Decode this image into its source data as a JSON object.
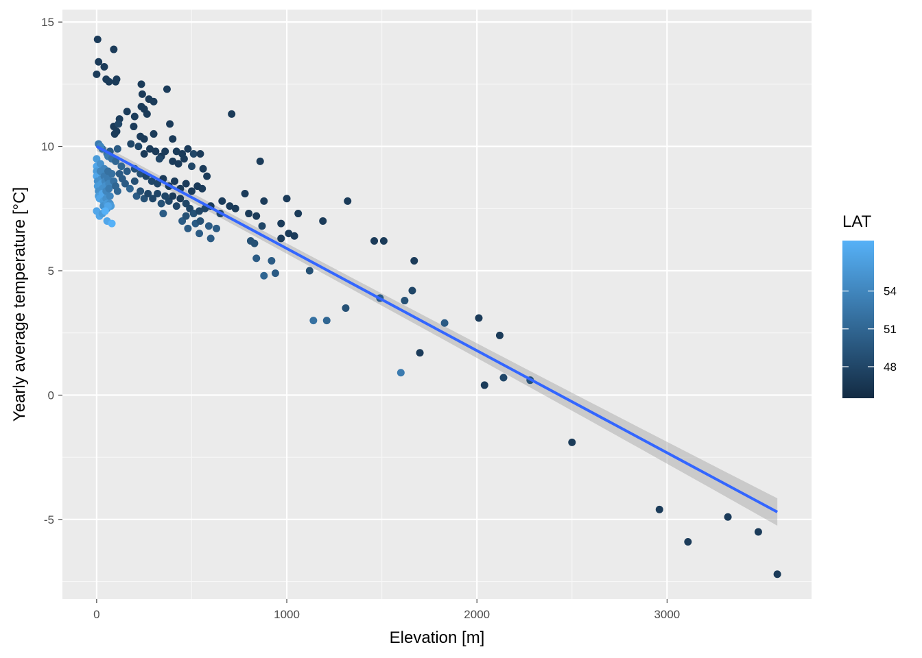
{
  "chart_data": {
    "type": "scatter",
    "title": "",
    "xlabel": "Elevation [m]",
    "ylabel": "Yearly average temperature [°C]",
    "xlim": [
      -180,
      3760
    ],
    "ylim": [
      -8.2,
      15.5
    ],
    "x_ticks": [
      0,
      1000,
      2000,
      3000
    ],
    "x_tick_labels": [
      "0",
      "1000",
      "2000",
      "3000"
    ],
    "y_ticks": [
      -5,
      0,
      5,
      10,
      15
    ],
    "y_tick_labels": [
      "-5",
      "0",
      "5",
      "10",
      "15"
    ],
    "grid": true,
    "background": "#ebebeb",
    "legend": {
      "title": "LAT",
      "placement": "right",
      "type": "colorbar",
      "range": [
        45.5,
        58
      ],
      "breaks": [
        48,
        51,
        54
      ],
      "labels": [
        "48",
        "51",
        "54"
      ],
      "low_color": "#132b43",
      "high_color": "#56b1f7"
    },
    "trend": {
      "method": "linear",
      "color": "#3366ff",
      "band_color": "#999999",
      "x": [
        0,
        3580
      ],
      "y": [
        10.0,
        -4.7
      ],
      "band_halfwidth": [
        0.18,
        0.55
      ]
    },
    "columns": [
      "elevation_m",
      "temperature_c",
      "lat"
    ],
    "points": [
      [
        5,
        14.3,
        47
      ],
      [
        10,
        13.4,
        47
      ],
      [
        40,
        13.2,
        47
      ],
      [
        0,
        12.9,
        47
      ],
      [
        90,
        13.9,
        47
      ],
      [
        50,
        12.7,
        47
      ],
      [
        65,
        12.6,
        47
      ],
      [
        100,
        12.6,
        47
      ],
      [
        105,
        12.7,
        47
      ],
      [
        235,
        12.5,
        47
      ],
      [
        240,
        12.1,
        47
      ],
      [
        275,
        11.9,
        47
      ],
      [
        300,
        11.8,
        47
      ],
      [
        370,
        12.3,
        47
      ],
      [
        710,
        11.3,
        47
      ],
      [
        160,
        11.4,
        47
      ],
      [
        200,
        11.2,
        47
      ],
      [
        235,
        11.6,
        47
      ],
      [
        250,
        11.5,
        47
      ],
      [
        265,
        11.3,
        47
      ],
      [
        120,
        11.1,
        47
      ],
      [
        195,
        10.8,
        47
      ],
      [
        385,
        10.9,
        47
      ],
      [
        105,
        10.6,
        47
      ],
      [
        95,
        10.5,
        47
      ],
      [
        90,
        10.8,
        47
      ],
      [
        115,
        10.9,
        48
      ],
      [
        230,
        10.4,
        47
      ],
      [
        250,
        10.3,
        47
      ],
      [
        300,
        10.5,
        47
      ],
      [
        400,
        10.3,
        47
      ],
      [
        30,
        9.9,
        52
      ],
      [
        55,
        9.7,
        52
      ],
      [
        70,
        9.8,
        50
      ],
      [
        110,
        9.9,
        50
      ],
      [
        180,
        10.1,
        48
      ],
      [
        220,
        10.0,
        48
      ],
      [
        250,
        9.7,
        47
      ],
      [
        280,
        9.9,
        47
      ],
      [
        310,
        9.8,
        47
      ],
      [
        340,
        9.6,
        47
      ],
      [
        360,
        9.8,
        47
      ],
      [
        420,
        9.8,
        47
      ],
      [
        450,
        9.7,
        47
      ],
      [
        480,
        9.9,
        47
      ],
      [
        510,
        9.7,
        48
      ],
      [
        545,
        9.7,
        47
      ],
      [
        330,
        9.5,
        48
      ],
      [
        400,
        9.4,
        47
      ],
      [
        430,
        9.3,
        47
      ],
      [
        460,
        9.5,
        47
      ],
      [
        500,
        9.2,
        48
      ],
      [
        560,
        9.1,
        47
      ],
      [
        580,
        8.8,
        47
      ],
      [
        10,
        10.1,
        53
      ],
      [
        20,
        10.0,
        54
      ],
      [
        60,
        9.6,
        53
      ],
      [
        80,
        9.5,
        52
      ],
      [
        100,
        9.4,
        51
      ],
      [
        130,
        9.2,
        51
      ],
      [
        160,
        9.0,
        50
      ],
      [
        200,
        9.1,
        49
      ],
      [
        230,
        8.9,
        49
      ],
      [
        260,
        8.8,
        48
      ],
      [
        290,
        8.6,
        48
      ],
      [
        320,
        8.5,
        48
      ],
      [
        350,
        8.7,
        47
      ],
      [
        380,
        8.4,
        47
      ],
      [
        410,
        8.6,
        47
      ],
      [
        440,
        8.3,
        47
      ],
      [
        470,
        8.5,
        47
      ],
      [
        500,
        8.2,
        47
      ],
      [
        530,
        8.4,
        47
      ],
      [
        555,
        8.3,
        47
      ],
      [
        600,
        7.6,
        47
      ],
      [
        0,
        9.5,
        56
      ],
      [
        0,
        9.2,
        57
      ],
      [
        0,
        9.0,
        56
      ],
      [
        0,
        8.8,
        57
      ],
      [
        5,
        8.6,
        55
      ],
      [
        5,
        8.4,
        56
      ],
      [
        10,
        8.2,
        55
      ],
      [
        10,
        8.0,
        56
      ],
      [
        15,
        7.9,
        57
      ],
      [
        20,
        9.3,
        55
      ],
      [
        20,
        9.0,
        54
      ],
      [
        25,
        8.7,
        55
      ],
      [
        25,
        8.5,
        56
      ],
      [
        30,
        8.3,
        55
      ],
      [
        30,
        8.1,
        57
      ],
      [
        35,
        7.8,
        56
      ],
      [
        35,
        7.6,
        55
      ],
      [
        40,
        9.1,
        54
      ],
      [
        40,
        8.8,
        53
      ],
      [
        45,
        8.6,
        54
      ],
      [
        45,
        8.4,
        55
      ],
      [
        50,
        8.2,
        54
      ],
      [
        50,
        7.9,
        55
      ],
      [
        55,
        7.7,
        56
      ],
      [
        55,
        7.5,
        55
      ],
      [
        60,
        9.0,
        52
      ],
      [
        60,
        8.7,
        53
      ],
      [
        65,
        8.5,
        54
      ],
      [
        65,
        8.3,
        53
      ],
      [
        70,
        8.0,
        54
      ],
      [
        70,
        7.7,
        55
      ],
      [
        75,
        7.6,
        56
      ],
      [
        80,
        8.9,
        52
      ],
      [
        0,
        7.4,
        57
      ],
      [
        15,
        7.2,
        57
      ],
      [
        30,
        7.3,
        56
      ],
      [
        55,
        7.0,
        57
      ],
      [
        80,
        6.9,
        58
      ],
      [
        60,
        7.6,
        57
      ],
      [
        45,
        7.4,
        58
      ],
      [
        90,
        8.6,
        52
      ],
      [
        100,
        8.4,
        51
      ],
      [
        110,
        8.2,
        51
      ],
      [
        120,
        8.9,
        50
      ],
      [
        135,
        8.7,
        50
      ],
      [
        150,
        8.5,
        50
      ],
      [
        175,
        8.3,
        51
      ],
      [
        200,
        8.6,
        49
      ],
      [
        210,
        8.0,
        50
      ],
      [
        230,
        8.2,
        49
      ],
      [
        250,
        7.9,
        49
      ],
      [
        270,
        8.1,
        48
      ],
      [
        295,
        7.9,
        48
      ],
      [
        320,
        8.1,
        48
      ],
      [
        340,
        7.7,
        49
      ],
      [
        360,
        8.0,
        48
      ],
      [
        380,
        7.8,
        48
      ],
      [
        400,
        8.0,
        47
      ],
      [
        420,
        7.6,
        48
      ],
      [
        440,
        7.9,
        47
      ],
      [
        470,
        7.7,
        48
      ],
      [
        490,
        7.5,
        48
      ],
      [
        510,
        7.3,
        49
      ],
      [
        540,
        7.4,
        48
      ],
      [
        350,
        7.3,
        50
      ],
      [
        450,
        7.0,
        50
      ],
      [
        470,
        7.2,
        49
      ],
      [
        480,
        6.7,
        50
      ],
      [
        520,
        6.9,
        50
      ],
      [
        545,
        7.0,
        49
      ],
      [
        570,
        7.5,
        48
      ],
      [
        540,
        6.5,
        50
      ],
      [
        590,
        6.8,
        50
      ],
      [
        600,
        6.3,
        50
      ],
      [
        630,
        6.7,
        50
      ],
      [
        650,
        7.3,
        48
      ],
      [
        660,
        7.8,
        47
      ],
      [
        700,
        7.6,
        47
      ],
      [
        730,
        7.5,
        47
      ],
      [
        780,
        8.1,
        47
      ],
      [
        860,
        9.4,
        47
      ],
      [
        880,
        7.8,
        47
      ],
      [
        1000,
        7.9,
        47
      ],
      [
        800,
        7.3,
        47
      ],
      [
        840,
        7.2,
        47
      ],
      [
        870,
        6.8,
        48
      ],
      [
        970,
        6.9,
        47
      ],
      [
        1060,
        7.3,
        47
      ],
      [
        1190,
        7.0,
        47
      ],
      [
        1320,
        7.8,
        47
      ],
      [
        970,
        6.3,
        47
      ],
      [
        1010,
        6.5,
        47
      ],
      [
        1040,
        6.4,
        47
      ],
      [
        810,
        6.2,
        49
      ],
      [
        830,
        6.1,
        49
      ],
      [
        840,
        5.5,
        50
      ],
      [
        920,
        5.4,
        50
      ],
      [
        880,
        4.8,
        51
      ],
      [
        940,
        4.9,
        50
      ],
      [
        1120,
        5.0,
        49
      ],
      [
        1140,
        3.0,
        52
      ],
      [
        1210,
        3.0,
        51
      ],
      [
        1310,
        3.5,
        49
      ],
      [
        1460,
        6.2,
        47
      ],
      [
        1510,
        6.2,
        47
      ],
      [
        1670,
        5.4,
        47
      ],
      [
        1490,
        3.9,
        50
      ],
      [
        1620,
        3.8,
        49
      ],
      [
        1660,
        4.2,
        48
      ],
      [
        1600,
        0.9,
        53
      ],
      [
        1700,
        1.7,
        47
      ],
      [
        1830,
        2.9,
        50
      ],
      [
        2010,
        3.1,
        47
      ],
      [
        2040,
        0.4,
        47
      ],
      [
        2120,
        2.4,
        47
      ],
      [
        2140,
        0.7,
        48
      ],
      [
        2280,
        0.6,
        49
      ],
      [
        2500,
        -1.9,
        47
      ],
      [
        2960,
        -4.6,
        47
      ],
      [
        3110,
        -5.9,
        47
      ],
      [
        3320,
        -4.9,
        47
      ],
      [
        3480,
        -5.5,
        47
      ],
      [
        3580,
        -7.2,
        47
      ]
    ]
  }
}
